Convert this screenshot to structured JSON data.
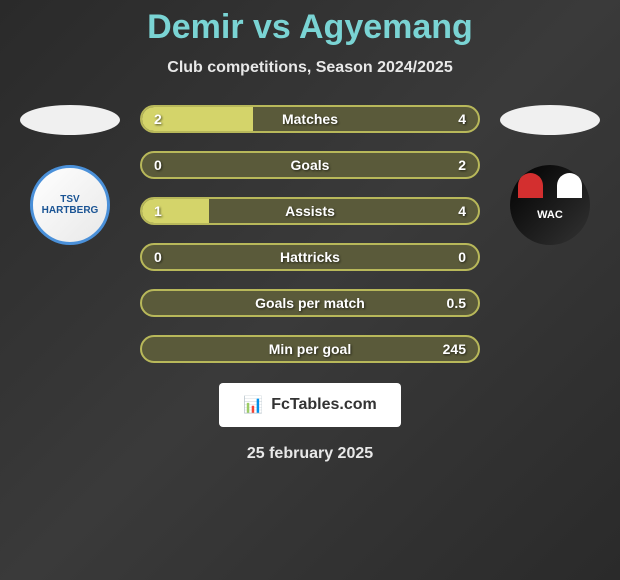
{
  "title": "Demir vs Agyemang",
  "subtitle": "Club competitions, Season 2024/2025",
  "leftClub": {
    "name": "TSV Hartberg",
    "abbreviation": "TSV HARTBERG"
  },
  "rightClub": {
    "name": "WAC",
    "abbreviation": "WAC"
  },
  "stats": [
    {
      "label": "Matches",
      "leftValue": "2",
      "rightValue": "4",
      "leftNum": 2,
      "rightNum": 4,
      "fillPercent": 33
    },
    {
      "label": "Goals",
      "leftValue": "0",
      "rightValue": "2",
      "leftNum": 0,
      "rightNum": 2,
      "fillPercent": 0
    },
    {
      "label": "Assists",
      "leftValue": "1",
      "rightValue": "4",
      "leftNum": 1,
      "rightNum": 4,
      "fillPercent": 20
    },
    {
      "label": "Hattricks",
      "leftValue": "0",
      "rightValue": "0",
      "leftNum": 0,
      "rightNum": 0,
      "fillPercent": 0
    },
    {
      "label": "Goals per match",
      "leftValue": "",
      "rightValue": "0.5",
      "leftNum": 0,
      "rightNum": 0.5,
      "fillPercent": 0
    },
    {
      "label": "Min per goal",
      "leftValue": "",
      "rightValue": "245",
      "leftNum": 0,
      "rightNum": 245,
      "fillPercent": 0
    }
  ],
  "footer": {
    "brandText": "FcTables.com",
    "date": "25 february 2025"
  },
  "colors": {
    "titleColor": "#7ad4d4",
    "textColor": "#e8e8e8",
    "barBackground": "#5a5a3a",
    "barBorder": "#b8b85a",
    "barFill": "#d4d46a",
    "pageBackground": "#2a2a2a"
  }
}
